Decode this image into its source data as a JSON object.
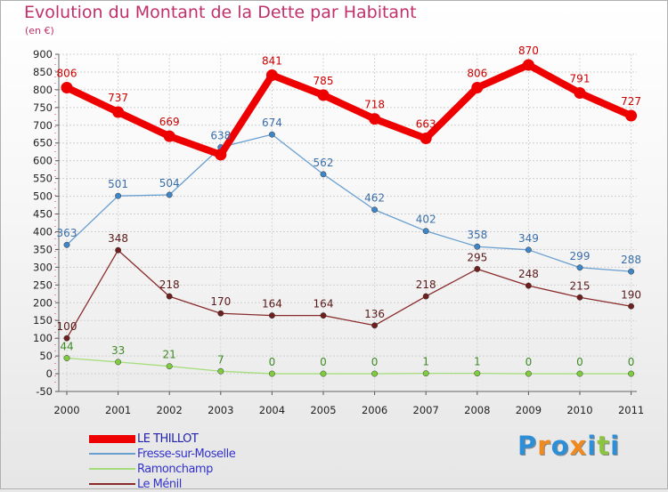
{
  "header": {
    "title": "Evolution du Montant de la Dette par Habitant",
    "unit": "(en €)"
  },
  "logo": {
    "text": "Proxiti",
    "letters": [
      "P",
      "r",
      "o",
      "x",
      "i",
      "t",
      "i"
    ],
    "colors": [
      "#2f8fd6",
      "#f08a1e",
      "#2f8fd6",
      "#f08a1e",
      "#2f8fd6",
      "#8bc53f",
      "#2f8fd6"
    ]
  },
  "chart_data": {
    "type": "line",
    "title": "Evolution du Montant de la Dette par Habitant",
    "subtitle": "(en €)",
    "xlabel": "",
    "ylabel": "",
    "categories": [
      "2000",
      "2001",
      "2002",
      "2003",
      "2004",
      "2005",
      "2006",
      "2007",
      "2008",
      "2009",
      "2010",
      "2011"
    ],
    "ylim": [
      -50,
      900
    ],
    "yticks": [
      -50,
      0,
      50,
      100,
      150,
      200,
      250,
      300,
      350,
      400,
      450,
      500,
      550,
      600,
      650,
      700,
      750,
      800,
      850,
      900
    ],
    "grid": true,
    "legend_position": "bottom-left",
    "series": [
      {
        "name": "LE THILLOT",
        "color": "#ee0000",
        "label_color": "#cc0000",
        "line_width": 8,
        "marker_radius": 6.5,
        "values": [
          806,
          737,
          669,
          617,
          841,
          785,
          718,
          663,
          806,
          870,
          791,
          727
        ],
        "labels": [
          "806",
          "737",
          "669",
          "",
          "841",
          "785",
          "718",
          "663",
          "806",
          "870",
          "791",
          "727"
        ]
      },
      {
        "name": "Fresse-sur-Moselle",
        "color": "#6a9fd0",
        "point_color": "#3f86c8",
        "label_color": "#3a6ea8",
        "line_width": 1.3,
        "marker_radius": 3.2,
        "values": [
          363,
          501,
          504,
          638,
          674,
          562,
          462,
          402,
          358,
          349,
          299,
          288
        ],
        "labels": [
          "363",
          "501",
          "504",
          "638",
          "674",
          "562",
          "462",
          "402",
          "358",
          "349",
          "299",
          "288"
        ]
      },
      {
        "name": "Ramonchamp",
        "color": "#a6dd7c",
        "point_color": "#7fcc3f",
        "label_color": "#3f8a25",
        "line_width": 1.3,
        "marker_radius": 3.2,
        "values": [
          44,
          33,
          21,
          7,
          0,
          0,
          0,
          1,
          1,
          0,
          0,
          0
        ],
        "labels": [
          "44",
          "33",
          "21",
          "7",
          "0",
          "0",
          "0",
          "1",
          "1",
          "0",
          "0",
          "0"
        ]
      },
      {
        "name": "Le Ménil",
        "color": "#8a2b2b",
        "point_color": "#6e1f1f",
        "label_color": "#5a1a1a",
        "line_width": 1.3,
        "marker_radius": 3.2,
        "values": [
          100,
          348,
          218,
          170,
          164,
          164,
          136,
          218,
          295,
          248,
          215,
          190
        ],
        "labels": [
          "100",
          "348",
          "218",
          "170",
          "164",
          "164",
          "136",
          "218",
          "295",
          "248",
          "215",
          "190"
        ]
      }
    ]
  }
}
